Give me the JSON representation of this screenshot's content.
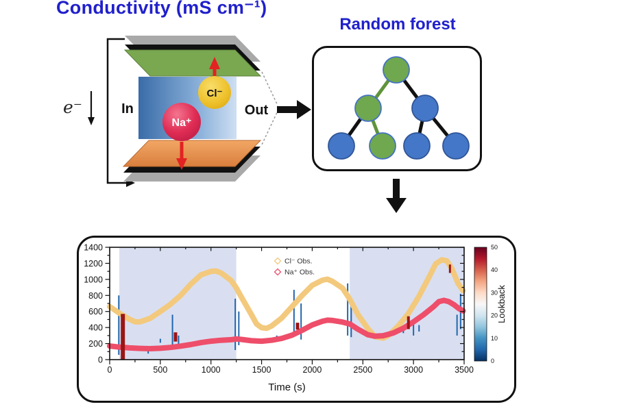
{
  "header": {
    "title": "Conductivity (mS cm⁻¹)",
    "color": "#2020cc"
  },
  "device": {
    "labels": {
      "electron": "e⁻",
      "inlet": "In",
      "outlet": "Out",
      "cation": "Na⁺",
      "anion": "Cl⁻"
    },
    "colors": {
      "top_electrode_green": "#7aa851",
      "bottom_electrode_orange": "#e0884a",
      "contact_gray": "#a9a9a9",
      "contact_black": "#111111",
      "channel_dark": "#3a6ca8",
      "channel_light": "#cfdff2",
      "cation_red": "#e0315c",
      "anion_gold": "#eebe2a",
      "ion_arrow_red": "#e32222"
    }
  },
  "forest": {
    "title": "Random forest",
    "nodes": [
      {
        "id": "root",
        "color": "green"
      },
      {
        "id": "l",
        "color": "green"
      },
      {
        "id": "r",
        "color": "blue"
      },
      {
        "id": "ll",
        "color": "blue"
      },
      {
        "id": "lr",
        "color": "green"
      },
      {
        "id": "rl",
        "color": "blue"
      },
      {
        "id": "rr",
        "color": "blue"
      }
    ],
    "edges": [
      {
        "from": "root",
        "to": "l",
        "color": "green"
      },
      {
        "from": "root",
        "to": "r",
        "color": "black"
      },
      {
        "from": "l",
        "to": "ll",
        "color": "black"
      },
      {
        "from": "l",
        "to": "lr",
        "color": "green"
      },
      {
        "from": "r",
        "to": "rl",
        "color": "black"
      },
      {
        "from": "r",
        "to": "rr",
        "color": "black"
      }
    ],
    "colors": {
      "node_green": "#6fa84f",
      "node_green_stroke": "#4472c4",
      "node_blue": "#4577c8",
      "node_blue_stroke": "#2f5597",
      "edge_green": "#5f943b",
      "edge_black": "#111111"
    }
  },
  "chart_data": {
    "type": "line",
    "title": "",
    "xlabel": "Time (s)",
    "ylabel": "",
    "xlim": [
      0,
      3500
    ],
    "ylim": [
      0,
      1400
    ],
    "xticks": [
      0,
      500,
      1000,
      1500,
      2000,
      2500,
      3000,
      3500
    ],
    "yticks": [
      0,
      200,
      400,
      600,
      800,
      1000,
      1200,
      1400
    ],
    "grid": false,
    "legend_position": "upper-center",
    "shade_color": "#d9dff1",
    "shaded_regions": [
      [
        95,
        1250
      ],
      [
        2370,
        3500
      ]
    ],
    "series": [
      {
        "name": "Cl⁻ Obs.",
        "color": "#f3c97d",
        "points": [
          [
            0,
            660
          ],
          [
            100,
            575
          ],
          [
            200,
            500
          ],
          [
            250,
            472
          ],
          [
            300,
            470
          ],
          [
            400,
            515
          ],
          [
            500,
            600
          ],
          [
            600,
            690
          ],
          [
            700,
            800
          ],
          [
            800,
            940
          ],
          [
            900,
            1055
          ],
          [
            1000,
            1100
          ],
          [
            1050,
            1105
          ],
          [
            1100,
            1080
          ],
          [
            1200,
            985
          ],
          [
            1250,
            895
          ],
          [
            1300,
            780
          ],
          [
            1400,
            560
          ],
          [
            1450,
            445
          ],
          [
            1500,
            398
          ],
          [
            1550,
            390
          ],
          [
            1600,
            420
          ],
          [
            1700,
            520
          ],
          [
            1800,
            660
          ],
          [
            1900,
            800
          ],
          [
            2000,
            925
          ],
          [
            2100,
            990
          ],
          [
            2150,
            1002
          ],
          [
            2200,
            975
          ],
          [
            2300,
            890
          ],
          [
            2370,
            755
          ],
          [
            2450,
            565
          ],
          [
            2550,
            385
          ],
          [
            2620,
            285
          ],
          [
            2700,
            268
          ],
          [
            2750,
            298
          ],
          [
            2850,
            420
          ],
          [
            2950,
            575
          ],
          [
            3050,
            780
          ],
          [
            3150,
            1020
          ],
          [
            3220,
            1195
          ],
          [
            3280,
            1245
          ],
          [
            3330,
            1230
          ],
          [
            3380,
            1130
          ],
          [
            3440,
            950
          ],
          [
            3490,
            860
          ]
        ]
      },
      {
        "name": "Na⁺ Obs.",
        "color": "#ee4e6a",
        "points": [
          [
            0,
            170
          ],
          [
            100,
            155
          ],
          [
            200,
            146
          ],
          [
            300,
            140
          ],
          [
            400,
            137
          ],
          [
            500,
            142
          ],
          [
            600,
            152
          ],
          [
            700,
            168
          ],
          [
            800,
            188
          ],
          [
            900,
            212
          ],
          [
            1000,
            230
          ],
          [
            1100,
            242
          ],
          [
            1200,
            248
          ],
          [
            1250,
            258
          ],
          [
            1300,
            252
          ],
          [
            1400,
            236
          ],
          [
            1500,
            230
          ],
          [
            1600,
            242
          ],
          [
            1700,
            265
          ],
          [
            1800,
            305
          ],
          [
            1900,
            365
          ],
          [
            2000,
            432
          ],
          [
            2100,
            478
          ],
          [
            2150,
            492
          ],
          [
            2200,
            488
          ],
          [
            2300,
            468
          ],
          [
            2370,
            445
          ],
          [
            2450,
            380
          ],
          [
            2550,
            310
          ],
          [
            2620,
            292
          ],
          [
            2700,
            298
          ],
          [
            2800,
            332
          ],
          [
            2900,
            392
          ],
          [
            3000,
            470
          ],
          [
            3100,
            560
          ],
          [
            3200,
            662
          ],
          [
            3250,
            722
          ],
          [
            3300,
            738
          ],
          [
            3350,
            722
          ],
          [
            3400,
            685
          ],
          [
            3450,
            635
          ],
          [
            3490,
            608
          ]
        ]
      }
    ],
    "spikes": [
      {
        "t": 90,
        "v0": 60,
        "v1": 800,
        "color": "blue",
        "w": 2
      },
      {
        "t": 130,
        "v0": 0,
        "v1": 570,
        "color": "darkred",
        "w": 6
      },
      {
        "t": 380,
        "v0": 75,
        "v1": 140,
        "color": "blue",
        "w": 2
      },
      {
        "t": 500,
        "v0": 210,
        "v1": 260,
        "color": "blue",
        "w": 2
      },
      {
        "t": 620,
        "v0": 140,
        "v1": 560,
        "color": "blue",
        "w": 2
      },
      {
        "t": 650,
        "v0": 225,
        "v1": 340,
        "color": "darkred",
        "w": 5
      },
      {
        "t": 680,
        "v0": 170,
        "v1": 300,
        "color": "blue",
        "w": 2
      },
      {
        "t": 1240,
        "v0": 120,
        "v1": 760,
        "color": "blue",
        "w": 2
      },
      {
        "t": 1275,
        "v0": 180,
        "v1": 600,
        "color": "blue",
        "w": 2
      },
      {
        "t": 1650,
        "v0": 225,
        "v1": 300,
        "color": "blue",
        "w": 2
      },
      {
        "t": 1820,
        "v0": 300,
        "v1": 870,
        "color": "blue",
        "w": 2
      },
      {
        "t": 1855,
        "v0": 375,
        "v1": 460,
        "color": "darkred",
        "w": 5
      },
      {
        "t": 1890,
        "v0": 250,
        "v1": 700,
        "color": "blue",
        "w": 2
      },
      {
        "t": 2350,
        "v0": 300,
        "v1": 950,
        "color": "blue",
        "w": 2
      },
      {
        "t": 2385,
        "v0": 280,
        "v1": 700,
        "color": "blue",
        "w": 2
      },
      {
        "t": 2900,
        "v0": 330,
        "v1": 420,
        "color": "blue",
        "w": 2
      },
      {
        "t": 2950,
        "v0": 380,
        "v1": 540,
        "color": "darkred",
        "w": 4
      },
      {
        "t": 3000,
        "v0": 300,
        "v1": 470,
        "color": "blue",
        "w": 2
      },
      {
        "t": 3055,
        "v0": 350,
        "v1": 430,
        "color": "blue",
        "w": 2
      },
      {
        "t": 3360,
        "v0": 1080,
        "v1": 1185,
        "color": "darkred",
        "w": 3
      },
      {
        "t": 3430,
        "v0": 300,
        "v1": 560,
        "color": "blue",
        "w": 2
      },
      {
        "t": 3465,
        "v0": 380,
        "v1": 820,
        "color": "blue",
        "w": 2
      }
    ],
    "colors": {
      "spike_blue": "#2166ac",
      "spike_red": "#9b1515",
      "axis": "#111111"
    },
    "colorbar": {
      "label": "Lookback",
      "min": 0,
      "max": 50,
      "ticks": [
        0,
        10,
        20,
        30,
        40,
        50
      ],
      "colormap": "RdBu_r"
    }
  }
}
